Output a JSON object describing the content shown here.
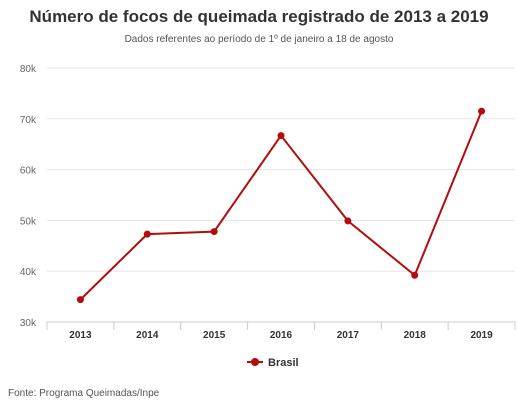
{
  "chart_data": {
    "type": "line",
    "title": "Número de focos de queimada registrado de 2013 a 2019",
    "subtitle": "Dados referentes ao período de 1º de janeiro a 18 de agosto",
    "categories": [
      "2013",
      "2014",
      "2015",
      "2016",
      "2017",
      "2018",
      "2019"
    ],
    "series": [
      {
        "name": "Brasil",
        "values": [
          34400,
          47300,
          47800,
          66700,
          49900,
          39200,
          71500
        ],
        "color": "#b30c0c"
      }
    ],
    "ylim": [
      30000,
      80000
    ],
    "yticks": [
      30000,
      40000,
      50000,
      60000,
      70000,
      80000
    ],
    "ytick_labels": [
      "30k",
      "40k",
      "50k",
      "60k",
      "70k",
      "80k"
    ],
    "grid": true,
    "legend": "bottom-center"
  },
  "footer": {
    "source": "Fonte: Programa Queimadas/Inpe"
  }
}
